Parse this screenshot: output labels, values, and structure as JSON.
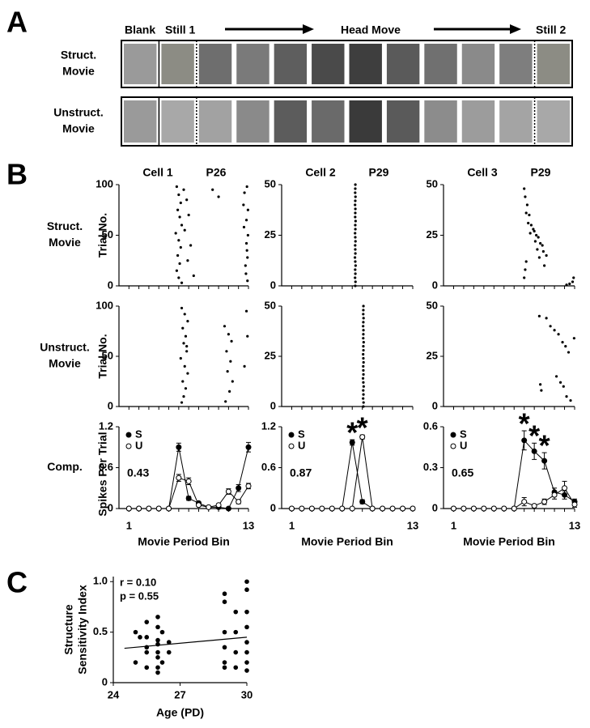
{
  "panel_labels": [
    "A",
    "B",
    "C"
  ],
  "movies": {
    "header": {
      "blank": "Blank",
      "still1": "Still 1",
      "head_move": "Head Move",
      "still2": "Still 2"
    },
    "rows": [
      {
        "label_lines": [
          "Struct.",
          "Movie"
        ],
        "frame_colors": [
          "#9a9a9a",
          "#8c8c84",
          "#6e6e6e",
          "#7a7a7a",
          "#5e5e5e",
          "#4a4a4a",
          "#3e3e3e",
          "#5a5a5a",
          "#707070",
          "#8a8a8a",
          "#7e7e7e",
          "#8c8c84"
        ]
      },
      {
        "label_lines": [
          "Unstruct.",
          "Movie"
        ],
        "frame_colors": [
          "#9a9a9a",
          "#a8a8a8",
          "#a2a2a2",
          "#8a8a8a",
          "#5c5c5c",
          "#6a6a6a",
          "#3a3a3a",
          "#5a5a5a",
          "#8c8c8c",
          "#9c9c9c",
          "#a4a4a4",
          "#a8a8a8"
        ]
      }
    ]
  },
  "cells": {
    "row_labels": [
      [
        "Struct.",
        "Movie"
      ],
      [
        "Unstruct.",
        "Movie"
      ],
      [
        "Comp."
      ]
    ],
    "raster_ylabel": "Trial No.",
    "comp_ylabel": "Spikes Per Trial",
    "x_axis": {
      "label": "Movie Period Bin",
      "xlim": [
        0,
        13
      ],
      "xticks": [
        1,
        13
      ],
      "minor_xticks": [
        2,
        3,
        4,
        5,
        6,
        7,
        8,
        9,
        10,
        11,
        12
      ],
      "bins": [
        1,
        2,
        3,
        4,
        5,
        6,
        7,
        8,
        9,
        10,
        11,
        12,
        13
      ]
    },
    "columns": [
      {
        "title": "Cell 1",
        "age": "P26",
        "raster_ylim": [
          0,
          100
        ],
        "raster_yticks": [
          0,
          50,
          100
        ],
        "rasters": [
          {
            "x": [
              5.8,
              6.0,
              6.2,
              5.9,
              6.1,
              6.3,
              5.7,
              6.0,
              6.2,
              5.9,
              6.1,
              5.8,
              6.0,
              6.3,
              6.5,
              6.8,
              7.0,
              6.6,
              7.2,
              6.9,
              7.5,
              9.4,
              10.0,
              12.5,
              12.8,
              12.95,
              12.85,
              12.7,
              12.9,
              12.6,
              12.95,
              12.55,
              12.8,
              12.9,
              12.75,
              12.85
            ],
            "y": [
              98,
              90,
              82,
              75,
              68,
              60,
              52,
              45,
              38,
              30,
              22,
              15,
              8,
              3,
              95,
              85,
              70,
              55,
              40,
              25,
              10,
              95,
              88,
              80,
              65,
              50,
              35,
              20,
              5,
              92,
              75,
              58,
              42,
              28,
              12,
              98
            ]
          },
          {
            "x": [
              6.3,
              6.6,
              6.9,
              6.4,
              6.7,
              6.5,
              6.8,
              6.2,
              6.6,
              6.9,
              6.4,
              6.7,
              6.5,
              6.3,
              6.8,
              10.6,
              11.0,
              11.3,
              10.8,
              11.2,
              10.9,
              11.4,
              11.1,
              10.7,
              12.8,
              12.9,
              12.6
            ],
            "y": [
              98,
              92,
              85,
              78,
              70,
              63,
              55,
              48,
              40,
              33,
              25,
              18,
              10,
              4,
              60,
              80,
              72,
              65,
              55,
              45,
              35,
              25,
              15,
              5,
              95,
              70,
              40
            ]
          }
        ],
        "comp": {
          "type": "line",
          "ylim": [
            0,
            1.2
          ],
          "yticks": [
            0,
            0.6,
            1.2
          ],
          "index": 0.43,
          "series": [
            {
              "name": "S",
              "color": "#000000",
              "values": [
                0,
                0,
                0,
                0,
                0,
                0.9,
                0.15,
                0.08,
                0.02,
                0.02,
                0,
                0.3,
                0.9
              ],
              "errors": [
                0,
                0,
                0,
                0,
                0,
                0.06,
                0.03,
                0.02,
                0.01,
                0.01,
                0.01,
                0.05,
                0.07
              ]
            },
            {
              "name": "U",
              "color": "#ffffff",
              "values": [
                0,
                0,
                0,
                0,
                0,
                0.45,
                0.4,
                0.05,
                0.02,
                0.05,
                0.25,
                0.1,
                0.33
              ],
              "errors": [
                0,
                0,
                0,
                0,
                0,
                0.05,
                0.05,
                0.02,
                0.01,
                0.02,
                0.04,
                0.03,
                0.04
              ]
            }
          ]
        }
      },
      {
        "title": "Cell 2",
        "age": "P29",
        "raster_ylim": [
          0,
          50
        ],
        "raster_yticks": [
          0,
          25,
          50
        ],
        "rasters": [
          {
            "x": [
              7.3,
              7.32,
              7.28,
              7.31,
              7.29,
              7.33,
              7.3,
              7.27,
              7.31,
              7.3,
              7.29,
              7.32,
              7.3,
              7.28,
              7.31,
              7.3,
              7.33,
              7.29,
              7.3,
              7.31,
              7.28,
              7.3,
              7.32,
              7.29,
              7.3,
              7.31
            ],
            "y": [
              0,
              2,
              4,
              6,
              8,
              10,
              12,
              14,
              16,
              18,
              20,
              22,
              24,
              26,
              28,
              30,
              32,
              34,
              36,
              38,
              40,
              42,
              44,
              46,
              48,
              50
            ]
          },
          {
            "x": [
              8.1,
              8.12,
              8.08,
              8.11,
              8.09,
              8.13,
              8.1,
              8.07,
              8.11,
              8.1,
              8.09,
              8.12,
              8.1,
              8.08,
              8.11,
              8.1,
              8.13,
              8.09,
              8.1,
              8.11,
              8.08,
              8.1,
              8.12,
              8.09,
              8.1,
              8.11
            ],
            "y": [
              0,
              2,
              4,
              6,
              8,
              10,
              12,
              14,
              16,
              18,
              20,
              22,
              24,
              26,
              28,
              30,
              32,
              34,
              36,
              38,
              40,
              42,
              44,
              46,
              48,
              50
            ]
          }
        ],
        "comp": {
          "type": "line",
          "ylim": [
            0,
            1.2
          ],
          "yticks": [
            0,
            0.6,
            1.2
          ],
          "index": 0.87,
          "asterisks": {
            "symbol": "*",
            "bins": [
              7,
              8
            ]
          },
          "series": [
            {
              "name": "S",
              "color": "#000000",
              "values": [
                0,
                0,
                0,
                0,
                0,
                0,
                0.97,
                0.1,
                0,
                0,
                0,
                0,
                0
              ],
              "errors": [
                0,
                0,
                0,
                0,
                0,
                0,
                0.04,
                0.03,
                0,
                0,
                0,
                0,
                0
              ]
            },
            {
              "name": "U",
              "color": "#ffffff",
              "values": [
                0,
                0,
                0,
                0,
                0,
                0,
                0,
                1.05,
                0,
                0,
                0,
                0,
                0
              ],
              "errors": [
                0,
                0,
                0,
                0,
                0,
                0,
                0,
                0.03,
                0,
                0,
                0,
                0,
                0
              ]
            }
          ]
        }
      },
      {
        "title": "Cell 3",
        "age": "P29",
        "raster_ylim": [
          0,
          50
        ],
        "raster_yticks": [
          0,
          25,
          50
        ],
        "rasters": [
          {
            "x": [
              8.0,
              8.1,
              8.3,
              8.2,
              8.5,
              8.4,
              8.7,
              8.9,
              9.0,
              9.2,
              9.4,
              9.1,
              9.6,
              9.8,
              9.3,
              9.9,
              10.2,
              8.2,
              8.1,
              8.0,
              8.6,
              9.5,
              10.0,
              12.8,
              12.5,
              12.9,
              12.2
            ],
            "y": [
              48,
              44,
              40,
              36,
              35,
              31,
              30,
              28,
              27,
              25,
              24,
              22,
              21,
              20,
              18,
              17,
              15,
              12,
              8,
              4,
              26,
              14,
              10,
              2,
              1,
              4,
              0.5
            ]
          },
          {
            "x": [
              9.5,
              10.2,
              10.6,
              11.0,
              11.4,
              11.8,
              12.1,
              12.4,
              9.6,
              9.7,
              11.2,
              11.6,
              11.9,
              12.2,
              12.6,
              12.95
            ],
            "y": [
              45,
              44,
              40,
              38,
              36,
              32,
              30,
              27,
              11,
              8,
              15,
              12,
              10,
              5,
              3,
              34
            ]
          }
        ],
        "comp": {
          "type": "line",
          "ylim": [
            0,
            0.6
          ],
          "yticks": [
            0,
            0.3,
            0.6
          ],
          "index": 0.65,
          "asterisks": {
            "symbol": "*",
            "bins": [
              8,
              9,
              10
            ]
          },
          "series": [
            {
              "name": "S",
              "color": "#000000",
              "values": [
                0,
                0,
                0,
                0,
                0,
                0,
                0,
                0.5,
                0.42,
                0.35,
                0.12,
                0.1,
                0.05
              ],
              "errors": [
                0,
                0,
                0,
                0,
                0,
                0,
                0,
                0.07,
                0.06,
                0.06,
                0.03,
                0.03,
                0.02
              ]
            },
            {
              "name": "U",
              "color": "#ffffff",
              "values": [
                0,
                0,
                0,
                0,
                0,
                0,
                0,
                0.05,
                0.02,
                0.05,
                0.1,
                0.15,
                0.03
              ],
              "errors": [
                0,
                0,
                0,
                0,
                0,
                0,
                0,
                0.03,
                0.01,
                0.02,
                0.03,
                0.05,
                0.02
              ]
            }
          ]
        }
      }
    ]
  },
  "chart_data": {
    "type": "scatter",
    "xlabel": "Age (PD)",
    "ylabel_lines": [
      "Structure",
      "Sensitivity Index"
    ],
    "annotations": [
      "r = 0.10",
      "p = 0.55"
    ],
    "xlim": [
      24,
      30
    ],
    "xticks": [
      24,
      27,
      30
    ],
    "ylim": [
      0,
      1.05
    ],
    "yticks": [
      0,
      0.5,
      {
        "value": 1,
        "label": "1.0"
      }
    ],
    "color": "#000000",
    "x": [
      25,
      25,
      25.2,
      25.5,
      25.5,
      25.5,
      25.5,
      25.5,
      26,
      26,
      26,
      26,
      26,
      26,
      26,
      26,
      26.2,
      26.2,
      26.5,
      26.5,
      29,
      29,
      29,
      29,
      29,
      29,
      29.5,
      29.5,
      29.5,
      29.5,
      30,
      30,
      30,
      30,
      30,
      30,
      30,
      30
    ],
    "y": [
      0.5,
      0.2,
      0.45,
      0.6,
      0.45,
      0.35,
      0.3,
      0.15,
      0.65,
      0.55,
      0.42,
      0.38,
      0.3,
      0.25,
      0.15,
      0.1,
      0.5,
      0.2,
      0.4,
      0.3,
      0.88,
      0.8,
      0.5,
      0.35,
      0.2,
      0.15,
      0.7,
      0.5,
      0.3,
      0.15,
      1.0,
      0.92,
      0.7,
      0.55,
      0.4,
      0.3,
      0.2,
      0.12
    ],
    "trend_line": {
      "x": [
        24.5,
        30
      ],
      "y": [
        0.34,
        0.45
      ]
    }
  }
}
